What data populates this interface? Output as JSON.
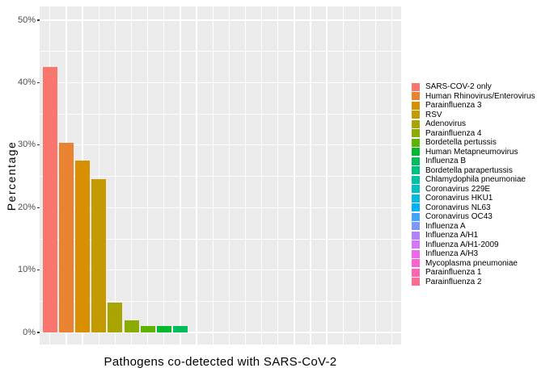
{
  "figure": {
    "background": "#FFFFFF",
    "panel_bg": "#EBEBEB",
    "grid_color": "#FFFFFF",
    "tick_mark_color": "#333333",
    "tick_label_color": "#4D4D4D",
    "title_color": "#000000"
  },
  "chart_data": {
    "type": "bar",
    "title": "",
    "xlabel": "Pathogens co-detected with SARS-CoV-2",
    "ylabel": "Percentage",
    "ylim": [
      0,
      52
    ],
    "grid": true,
    "legend_position": "right",
    "y_major_ticks": [
      0,
      10,
      20,
      30,
      40,
      50
    ],
    "y_minor_ticks": [
      5,
      15,
      25,
      35,
      45
    ],
    "y_tick_labels": [
      "0%",
      "10%",
      "20%",
      "30%",
      "40%",
      "50%"
    ],
    "x_tick_labels_shown": false,
    "categories": [
      "SARS-COV-2 only",
      "Human Rhinovirus/Enterovirus",
      "Parainfluenza 3",
      "RSV",
      "Adenovirus",
      "Parainfluenza 4",
      "Bordetella pertussis",
      "Human Metapneumovirus",
      "Influenza B",
      "Bordetella parapertussis",
      "Chlamydophila pneumoniae",
      "Coronavirus 229E",
      "Coronavirus HKU1",
      "Coronavirus NL63",
      "Coronavirus OC43",
      "Influenza A",
      "Influenza A/H1",
      "Influenza A/H1-2009",
      "Influenza A/H3",
      "Mycoplasma pneumoniae",
      "Parainfluenza 1",
      "Parainfluenza 2"
    ],
    "values": [
      42.5,
      30.4,
      27.5,
      24.6,
      4.8,
      2.0,
      1.0,
      1.0,
      1.0,
      0,
      0,
      0,
      0,
      0,
      0,
      0,
      0,
      0,
      0,
      0,
      0,
      0
    ],
    "colors": [
      "#F8766D",
      "#EA8331",
      "#D89000",
      "#C49A00",
      "#A9A400",
      "#8CAB00",
      "#5EB300",
      "#00B92F",
      "#00BD5C",
      "#00C07F",
      "#00C1A2",
      "#00BFC4",
      "#00BAE0",
      "#00AFF6",
      "#41A5FF",
      "#7E96FF",
      "#B283FF",
      "#D575FB",
      "#EF67EB",
      "#FC61D4",
      "#FF63B6",
      "#FF6C91"
    ]
  }
}
